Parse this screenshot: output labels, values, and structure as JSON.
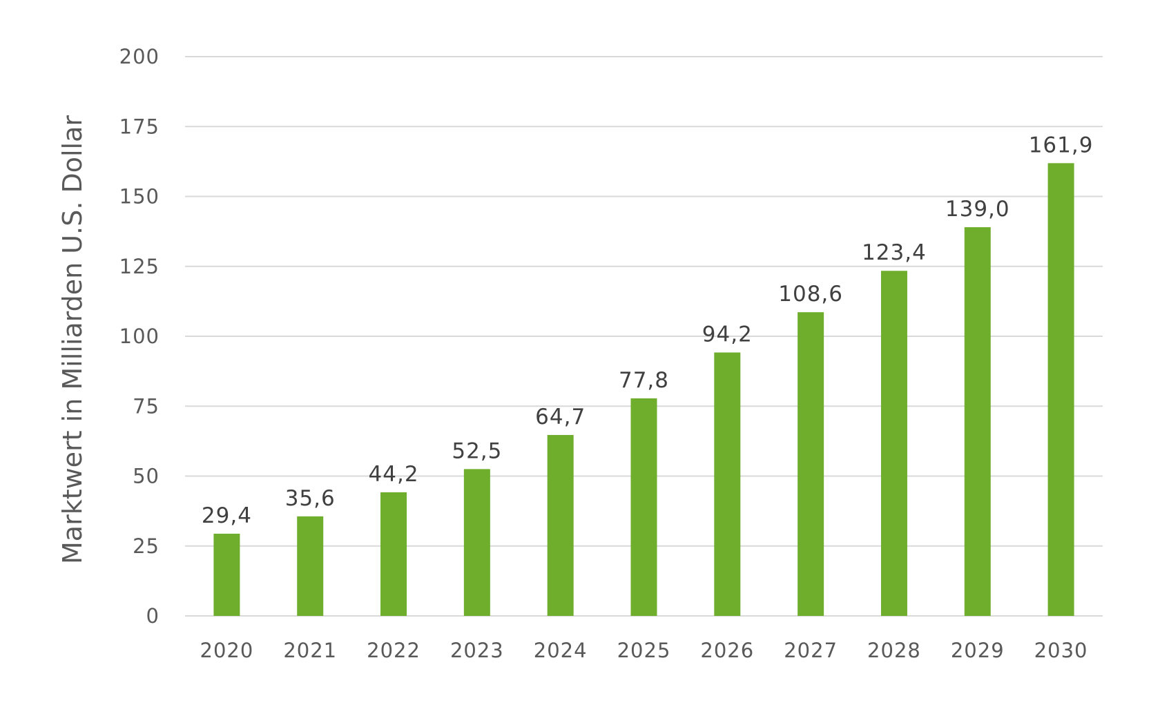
{
  "chart_data": {
    "type": "bar",
    "title": "",
    "xlabel": "",
    "ylabel": "Marktwert in Milliarden U.S. Dollar",
    "categories": [
      "2020",
      "2021",
      "2022",
      "2023",
      "2024",
      "2025",
      "2026",
      "2027",
      "2028",
      "2029",
      "2030"
    ],
    "values": [
      29.4,
      35.6,
      44.2,
      52.5,
      64.7,
      77.8,
      94.2,
      108.6,
      123.4,
      139.0,
      161.9
    ],
    "value_labels": [
      "29,4",
      "35,6",
      "44,2",
      "52,5",
      "64,7",
      "77,8",
      "94,2",
      "108,6",
      "123,4",
      "139,0",
      "161,9"
    ],
    "ylim": [
      0,
      200
    ],
    "yticks": [
      0,
      25,
      50,
      75,
      100,
      125,
      150,
      175,
      200
    ],
    "ytick_labels": [
      "0",
      "25",
      "50",
      "75",
      "100",
      "125",
      "150",
      "175",
      "200"
    ],
    "grid": true,
    "legend": "none",
    "colors": {
      "bar": "#6eae2c",
      "grid": "#d9d9d9",
      "tick_text": "#595959",
      "label_text": "#404040"
    }
  }
}
